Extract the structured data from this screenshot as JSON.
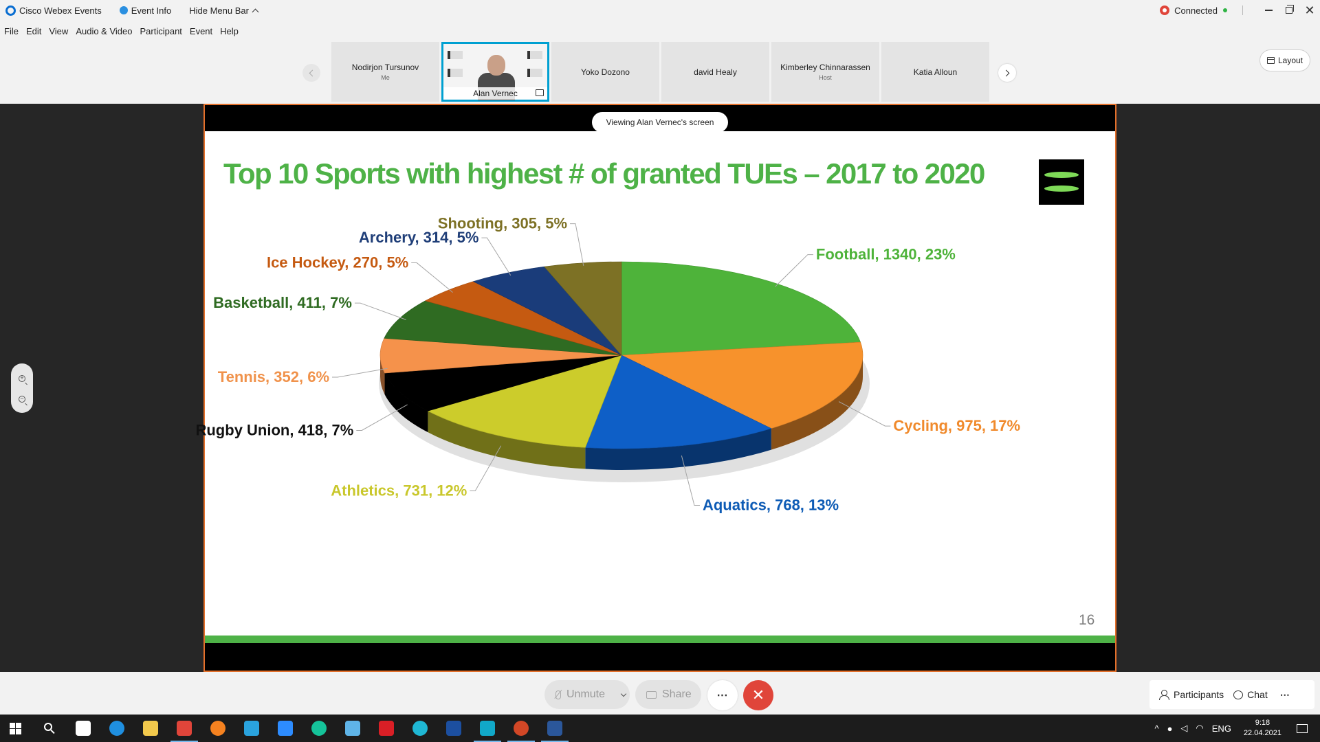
{
  "titlebar": {
    "app_name": "Cisco Webex Events",
    "event_info": "Event Info",
    "hide_menu": "Hide Menu Bar",
    "status": "Connected"
  },
  "menu": [
    "File",
    "Edit",
    "View",
    "Audio & Video",
    "Participant",
    "Event",
    "Help"
  ],
  "participants": [
    {
      "name": "Nodirjon Tursunov",
      "role": "Me"
    },
    {
      "name": "Alan Vernec",
      "role": ""
    },
    {
      "name": "Yoko Dozono",
      "role": ""
    },
    {
      "name": "david Healy",
      "role": ""
    },
    {
      "name": "Kimberley Chinnarassen",
      "role": "Host"
    },
    {
      "name": "Katia Alloun",
      "role": ""
    }
  ],
  "layout_label": "Layout",
  "viewing_label": "Viewing Alan Vernec's screen",
  "slide": {
    "title": "Top 10 Sports with highest # of granted TUEs – 2017 to 2020",
    "page_number": "16"
  },
  "chart_data": {
    "type": "pie",
    "title": "Top 10 Sports with highest # of granted TUEs – 2017 to 2020",
    "slices": [
      {
        "label": "Football",
        "value": 1340,
        "percent": "23%",
        "color": "#4eb33a",
        "label_color": "#4eb33a",
        "text": "Football, 1340, 23%"
      },
      {
        "label": "Cycling",
        "value": 975,
        "percent": "17%",
        "color": "#f7922c",
        "label_color": "#f08a2c",
        "text": "Cycling, 975, 17%"
      },
      {
        "label": "Aquatics",
        "value": 768,
        "percent": "13%",
        "color": "#0e5fc7",
        "label_color": "#0d5bb5",
        "text": "Aquatics, 768, 13%"
      },
      {
        "label": "Athletics",
        "value": 731,
        "percent": "12%",
        "color": "#cccc2b",
        "label_color": "#c9c72b",
        "text": "Athletics, 731, 12%"
      },
      {
        "label": "Rugby Union",
        "value": 418,
        "percent": "7%",
        "color": "#000000",
        "label_color": "#111111",
        "text": "Rugby Union, 418, 7%"
      },
      {
        "label": "Tennis",
        "value": 352,
        "percent": "6%",
        "color": "#f5924b",
        "label_color": "#f0924b",
        "text": "Tennis, 352, 6%"
      },
      {
        "label": "Basketball",
        "value": 411,
        "percent": "7%",
        "color": "#2f6b22",
        "label_color": "#2f6b22",
        "text": "Basketball, 411, 7%"
      },
      {
        "label": "Ice Hockey",
        "value": 270,
        "percent": "5%",
        "color": "#c55a11",
        "label_color": "#c55a11",
        "text": "Ice Hockey, 270, 5%"
      },
      {
        "label": "Archery",
        "value": 314,
        "percent": "5%",
        "color": "#1a3c7a",
        "label_color": "#1f3e78",
        "text": "Archery, 314, 5%"
      },
      {
        "label": "Shooting",
        "value": 305,
        "percent": "5%",
        "color": "#7d7125",
        "label_color": "#7d7125",
        "text": "Shooting, 305, 5%"
      }
    ]
  },
  "controls": {
    "unmute": "Unmute",
    "share": "Share",
    "participants": "Participants",
    "chat": "Chat"
  },
  "taskbar": {
    "language": "ENG",
    "time": "9:18",
    "date": "22.04.2021",
    "apps": [
      {
        "name": "task-view-icon",
        "color": "#ffffff"
      },
      {
        "name": "edge-icon",
        "color": "#1f8fe0"
      },
      {
        "name": "file-explorer-icon",
        "color": "#f2c94c"
      },
      {
        "name": "chrome-icon",
        "color": "#e0453a"
      },
      {
        "name": "avast-icon",
        "color": "#f58220"
      },
      {
        "name": "telegram-icon",
        "color": "#2aa3de"
      },
      {
        "name": "zoom-icon",
        "color": "#2d8cff"
      },
      {
        "name": "grammarly-icon",
        "color": "#15c39a"
      },
      {
        "name": "snipping-icon",
        "color": "#5fb4e8"
      },
      {
        "name": "creative-cloud-icon",
        "color": "#da1f26"
      },
      {
        "name": "webex-teams-icon",
        "color": "#1fb7d4"
      },
      {
        "name": "defender-icon",
        "color": "#1c4fa0"
      },
      {
        "name": "webex-events-icon",
        "color": "#11a8c8"
      },
      {
        "name": "powerpoint-icon",
        "color": "#d24726"
      },
      {
        "name": "word-icon",
        "color": "#2b579a"
      }
    ]
  }
}
